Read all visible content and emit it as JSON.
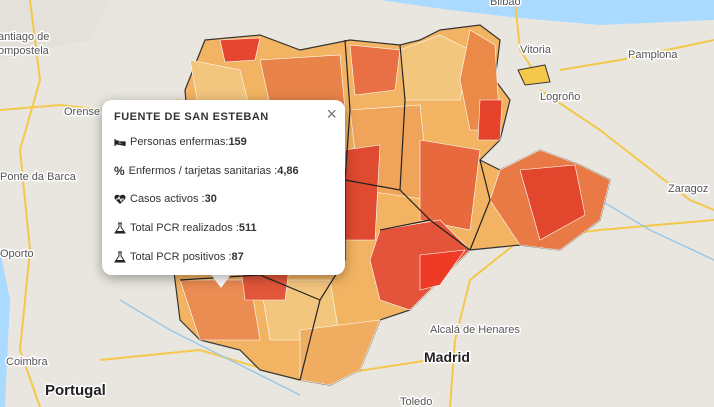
{
  "map_labels": [
    {
      "text": "Bilbao"
    },
    {
      "text": "antiago de"
    },
    {
      "text": "ompostela"
    },
    {
      "text": "Vitoria"
    },
    {
      "text": "Pamplona"
    },
    {
      "text": "Logroño"
    },
    {
      "text": "Orense"
    },
    {
      "text": "Ponte da Barca"
    },
    {
      "text": "Zaragoz"
    },
    {
      "text": "Oporto"
    },
    {
      "text": "Coimbra"
    },
    {
      "text": "Portugal"
    },
    {
      "text": "Alcalá de Henares"
    },
    {
      "text": "Madrid"
    },
    {
      "text": "Toledo"
    }
  ],
  "popup": {
    "title": "FUENTE DE SAN ESTEBAN",
    "close": "×",
    "rows": [
      {
        "label": "Personas enfermas: ",
        "value": 159
      },
      {
        "icon": "%",
        "label": "Enfermos / tarjetas sanitarias : ",
        "value": "4,86"
      },
      {
        "label": "Casos activos : ",
        "value": 30
      },
      {
        "label": "Total PCR realizados : ",
        "value": 511
      },
      {
        "label": "Total PCR positivos : ",
        "value": 87
      }
    ]
  }
}
